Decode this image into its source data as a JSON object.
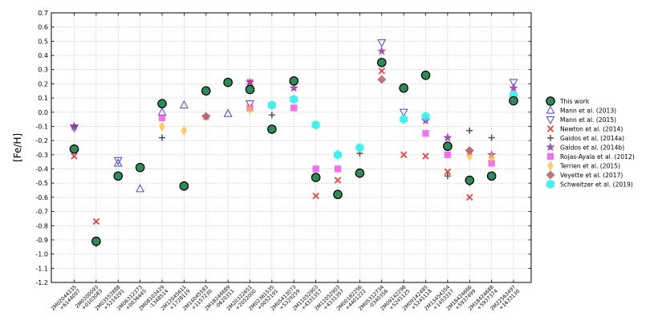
{
  "chart_data": {
    "type": "scatter",
    "title": "",
    "xlabel": "",
    "ylabel": "[Fe/H]",
    "ylim": [
      -1.2,
      0.7
    ],
    "yticks": [
      0.7,
      0.6,
      0.5,
      0.4,
      0.3,
      0.2,
      0.1,
      0.0,
      -0.1,
      -0.2,
      -0.3,
      -0.4,
      -0.5,
      -0.6,
      -0.7,
      -0.8,
      -0.9,
      -1.0,
      -1.1,
      -1.2
    ],
    "grid": true,
    "legend_position": "right",
    "categories": [
      [
        "2M02044335",
        "+6144097"
      ],
      [
        "2M0200093",
        "+0103083"
      ],
      [
        "2M03553888",
        "+5214291"
      ],
      [
        "2M06312373",
        "+0036445"
      ],
      [
        "2M08103429",
        "-1348514"
      ],
      [
        "2M12045611",
        "+1728119"
      ],
      [
        "2M14045583",
        "+1157230"
      ],
      [
        "2M18244689",
        "-0620311"
      ],
      [
        "2M20322651",
        "+2052000"
      ],
      [
        "2M02361535",
        "+0052191"
      ],
      [
        "2M05413073",
        "+5329259"
      ],
      [
        "2M11052903",
        "+4331357"
      ],
      [
        "2M11052903",
        "+4331357"
      ],
      [
        "2M00182256",
        "+4401222"
      ],
      [
        "2M05312734",
        "-0340356"
      ],
      [
        "2M09142298",
        "+5241125"
      ],
      [
        "2M09142485",
        "+5241118"
      ],
      [
        "2M13454354",
        "+1453317"
      ],
      [
        "2M18424666",
        "+5937499"
      ],
      [
        "2M18424688",
        "+5937374"
      ],
      [
        "2M22563497",
        "+1633130"
      ]
    ],
    "series": [
      {
        "name": "This work",
        "marker": "circle",
        "color": "#2e8b57",
        "stroke": "#000000",
        "values": [
          -0.26,
          -0.91,
          -0.45,
          -0.39,
          0.06,
          -0.52,
          0.15,
          0.21,
          0.16,
          -0.12,
          0.22,
          -0.46,
          -0.58,
          -0.43,
          0.35,
          0.17,
          0.26,
          -0.24,
          -0.48,
          -0.45,
          0.08
        ]
      },
      {
        "name": "Mann et al. (2013)",
        "marker": "triangle-up",
        "color": "#5555dd",
        "values": [
          null,
          null,
          -0.36,
          -0.54,
          0.0,
          0.05,
          null,
          -0.01,
          null,
          null,
          null,
          null,
          null,
          null,
          null,
          null,
          null,
          null,
          null,
          null,
          null
        ]
      },
      {
        "name": "Mann et al. (2015)",
        "marker": "triangle-down",
        "color": "#5555dd",
        "values": [
          -0.11,
          -0.92,
          -0.34,
          null,
          null,
          null,
          null,
          null,
          0.06,
          null,
          null,
          null,
          null,
          null,
          0.49,
          0.0,
          null,
          null,
          -0.49,
          null,
          0.21
        ]
      },
      {
        "name": "Newton et al. (2014)",
        "marker": "x",
        "color": "#ee2222",
        "values": [
          -0.31,
          -0.77,
          null,
          null,
          null,
          null,
          null,
          null,
          0.21,
          null,
          null,
          -0.59,
          -0.48,
          null,
          0.29,
          -0.3,
          -0.31,
          -0.42,
          -0.6,
          null,
          null
        ]
      },
      {
        "name": "Gaidos et al. (2014a)",
        "marker": "plus",
        "color": "#333333",
        "values": [
          -0.1,
          null,
          null,
          null,
          -0.18,
          null,
          null,
          null,
          null,
          -0.02,
          null,
          null,
          null,
          -0.29,
          null,
          null,
          null,
          -0.45,
          -0.13,
          -0.18,
          null
        ]
      },
      {
        "name": "Gaidos et al. (2014b)",
        "marker": "star",
        "color": "#9933aa",
        "values": [
          -0.1,
          null,
          null,
          null,
          null,
          null,
          -0.03,
          null,
          0.21,
          null,
          0.17,
          null,
          null,
          null,
          0.43,
          null,
          -0.06,
          -0.18,
          -0.28,
          -0.3,
          0.17
        ]
      },
      {
        "name": "Rojas-Ayala et al. (2012)",
        "marker": "square",
        "color": "#ee44ee",
        "values": [
          null,
          null,
          null,
          null,
          -0.04,
          null,
          null,
          null,
          0.03,
          null,
          0.03,
          -0.4,
          -0.4,
          null,
          null,
          null,
          -0.15,
          -0.3,
          null,
          -0.36,
          null
        ]
      },
      {
        "name": "Terrien et al. (2015)",
        "marker": "thin-diamond",
        "color": "#ffbb22",
        "values": [
          null,
          null,
          null,
          null,
          -0.1,
          -0.13,
          null,
          null,
          0.02,
          null,
          null,
          null,
          null,
          null,
          null,
          null,
          null,
          null,
          -0.31,
          -0.32,
          null
        ]
      },
      {
        "name": "Veyette et al. (2017)",
        "marker": "diamond",
        "color": "#bb6666",
        "values": [
          null,
          null,
          null,
          null,
          null,
          null,
          -0.03,
          null,
          null,
          null,
          null,
          null,
          null,
          null,
          0.23,
          null,
          null,
          null,
          -0.27,
          null,
          null
        ]
      },
      {
        "name": "Schweitzer et al. (2019)",
        "marker": "hexagon",
        "color": "#22eeee",
        "values": [
          null,
          null,
          null,
          null,
          null,
          null,
          null,
          null,
          null,
          0.05,
          0.09,
          -0.09,
          -0.3,
          -0.25,
          null,
          -0.05,
          -0.03,
          null,
          null,
          null,
          0.12
        ]
      }
    ]
  }
}
